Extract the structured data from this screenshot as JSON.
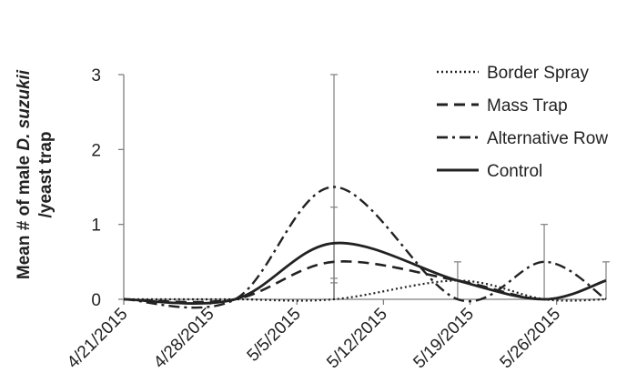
{
  "chart_data": {
    "type": "line",
    "ylabel_prefix": "Mean # of male ",
    "ylabel_italic": "D. suzukii",
    "ylabel_line2": "/yeast trap",
    "xlabel": "",
    "x_ticks": [
      "4/21/2015",
      "4/28/2015",
      "5/5/2015",
      "5/12/2015",
      "5/19/2015",
      "5/26/2015"
    ],
    "x_range": [
      "4/21/2015",
      "5/30/2015"
    ],
    "ylim": [
      0,
      3
    ],
    "y_ticks": [
      0,
      1,
      2,
      3
    ],
    "legend_position": "top-right",
    "grid": false,
    "x": [
      "4/21/2015",
      "4/30/2015",
      "5/8/2015",
      "5/18/2015",
      "5/25/2015",
      "5/30/2015"
    ],
    "series": [
      {
        "name": "Border Spray",
        "style": "dotted",
        "values": [
          0,
          0,
          0,
          0.25,
          0,
          0
        ]
      },
      {
        "name": "Mass Trap",
        "style": "dashed",
        "values": [
          0,
          0,
          0.5,
          0.25,
          0,
          0.25
        ]
      },
      {
        "name": "Alternative Row",
        "style": "dashdot",
        "values": [
          0,
          0,
          1.5,
          0,
          0.5,
          0
        ]
      },
      {
        "name": "Control",
        "style": "solid",
        "values": [
          0,
          0,
          0.75,
          0.25,
          0,
          0.25
        ]
      }
    ],
    "error_bars": [
      {
        "x": "5/8/2015",
        "values": [
          0.75,
          1.23,
          0.28,
          0.22,
          3.0
        ]
      },
      {
        "x": "5/18/2015",
        "values": [
          0.5
        ]
      },
      {
        "x": "5/25/2015",
        "values": [
          1.0
        ]
      },
      {
        "x": "5/30/2015",
        "values": [
          0.5
        ]
      }
    ]
  },
  "colors": {
    "line": "#222222",
    "axis": "#7f7f7f",
    "error_bar": "#7f7f7f"
  }
}
